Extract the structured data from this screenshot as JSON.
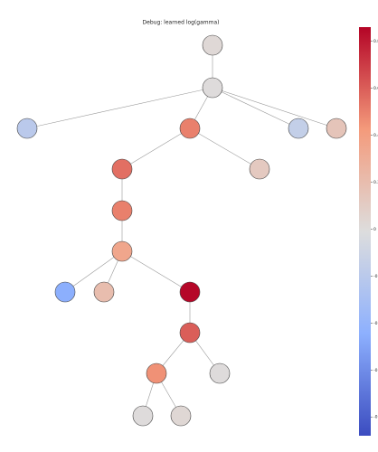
{
  "title": "Debug: learned log(gamma)",
  "colorbar": {
    "ylim": [
      -0.88,
      0.86
    ],
    "yticks": [
      0.8,
      0.6,
      0.4,
      0.2,
      0.0,
      -0.2,
      -0.4,
      -0.6,
      -0.8
    ]
  },
  "nodes": [
    {
      "value": 0.02
    },
    {
      "value": 0.0
    },
    {
      "value": -0.2
    },
    {
      "value": 0.5
    },
    {
      "value": -0.15
    },
    {
      "value": 0.15
    },
    {
      "value": 0.55
    },
    {
      "value": 0.12
    },
    {
      "value": 0.5
    },
    {
      "value": 0.35
    },
    {
      "value": -0.45
    },
    {
      "value": 0.2
    },
    {
      "value": 0.85
    },
    {
      "value": 0.6
    },
    {
      "value": 0.45
    },
    {
      "value": 0.0
    },
    {
      "value": 0.0
    },
    {
      "value": 0.03
    }
  ]
}
